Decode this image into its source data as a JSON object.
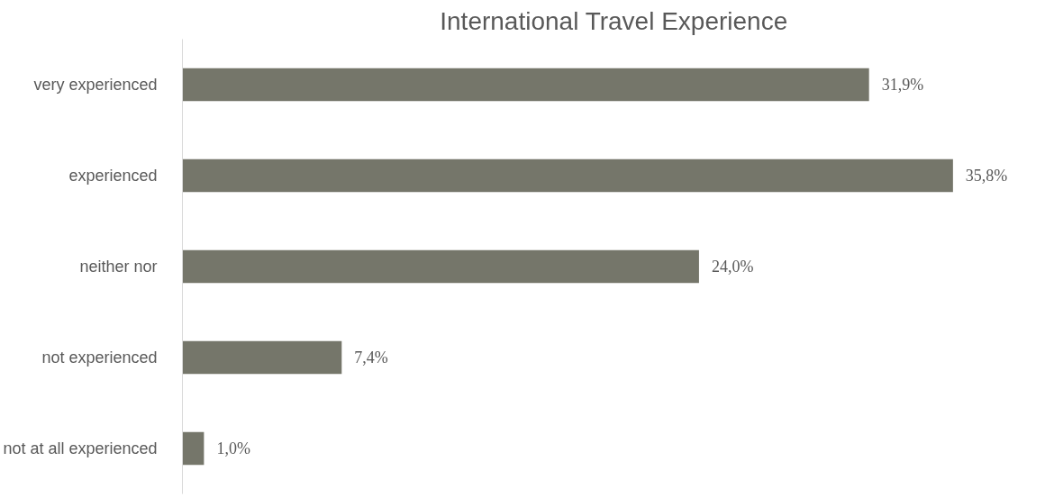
{
  "chart_data": {
    "type": "bar",
    "orientation": "horizontal",
    "title": "International Travel Experience",
    "categories": [
      "very experienced",
      "experienced",
      "neither nor",
      "not experienced",
      "not at all experienced"
    ],
    "values": [
      31.9,
      35.8,
      24.0,
      7.4,
      1.0
    ],
    "value_labels": [
      "31,9%",
      "35,8%",
      "24,0%",
      "7,4%",
      "1,0%"
    ],
    "color": "#75766a"
  }
}
